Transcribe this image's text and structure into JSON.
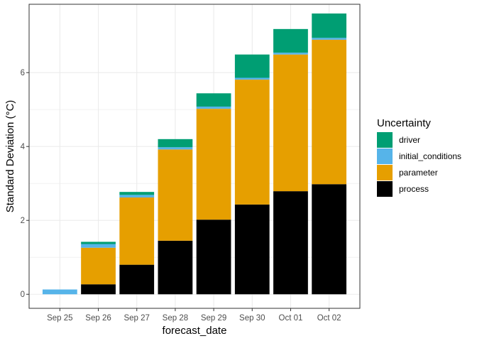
{
  "chart_data": {
    "type": "bar",
    "stacked": true,
    "xlabel": "forecast_date",
    "ylabel": "Standard Deviation (°C)",
    "categories": [
      "Sep 25",
      "Sep 26",
      "Sep 27",
      "Sep 28",
      "Sep 29",
      "Sep 30",
      "Oct 01",
      "Oct 02"
    ],
    "ylim": [
      -0.38,
      7.85
    ],
    "yticks": [
      0,
      2,
      4,
      6
    ],
    "grid": true,
    "legend": {
      "title": "Uncertainty",
      "position": "right"
    },
    "series": [
      {
        "name": "process",
        "color": "#000000",
        "values": [
          0.0,
          0.27,
          0.8,
          1.45,
          2.02,
          2.43,
          2.79,
          2.98
        ]
      },
      {
        "name": "parameter",
        "color": "#E69F00",
        "values": [
          0.0,
          0.99,
          1.82,
          2.47,
          3.0,
          3.38,
          3.7,
          3.91
        ]
      },
      {
        "name": "initial_conditions",
        "color": "#56B4E9",
        "values": [
          0.13,
          0.1,
          0.07,
          0.06,
          0.06,
          0.05,
          0.05,
          0.05
        ]
      },
      {
        "name": "driver",
        "color": "#009E73",
        "values": [
          0.0,
          0.06,
          0.08,
          0.22,
          0.36,
          0.63,
          0.64,
          0.66
        ]
      }
    ],
    "legend_order": [
      "driver",
      "initial_conditions",
      "parameter",
      "process"
    ]
  }
}
